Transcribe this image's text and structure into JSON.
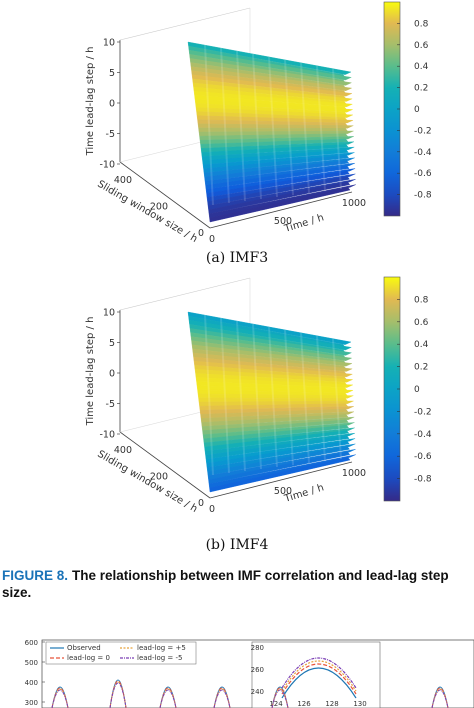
{
  "figure": {
    "number": "FIGURE 8.",
    "caption": "The relationship between IMF correlation and lead-lag step size."
  },
  "chart_data": [
    {
      "type": "surface3d",
      "sublabel": "(a) IMF3",
      "xlabel": "Time / h",
      "ylabel": "Sliding window size / h",
      "zlabel": "Time lead-lag step / h",
      "x_ticks": [
        "0",
        "500",
        "1000"
      ],
      "y_ticks": [
        "0",
        "200",
        "400"
      ],
      "z_ticks": [
        "-10",
        "-5",
        "0",
        "5",
        "10"
      ],
      "colorbar_ticks": [
        "0.8",
        "0.6",
        "0.4",
        "0.2",
        "0",
        "-0.2",
        "-0.4",
        "-0.6",
        "-0.8"
      ],
      "colorbar_range": [
        -1,
        1
      ],
      "xlim": [
        0,
        1000
      ],
      "ylim": [
        0,
        500
      ],
      "zlim": [
        -10,
        10
      ]
    },
    {
      "type": "surface3d",
      "sublabel": "(b) IMF4",
      "xlabel": "Time / h",
      "ylabel": "Sliding window size / h",
      "zlabel": "Time lead-lag step / h",
      "x_ticks": [
        "0",
        "500",
        "1000"
      ],
      "y_ticks": [
        "0",
        "200",
        "400"
      ],
      "z_ticks": [
        "-10",
        "-5",
        "0",
        "5",
        "10"
      ],
      "colorbar_ticks": [
        "0.8",
        "0.6",
        "0.4",
        "0.2",
        "0",
        "-0.2",
        "-0.4",
        "-0.6",
        "-0.8"
      ],
      "colorbar_range": [
        -1,
        1
      ],
      "xlim": [
        0,
        1000
      ],
      "ylim": [
        0,
        500
      ],
      "zlim": [
        -10,
        10
      ]
    },
    {
      "type": "line",
      "legend": [
        "Observed",
        "lead-log = +5",
        "lead-log = 0",
        "lead-log = -5"
      ],
      "y_ticks": [
        "600",
        "500",
        "400",
        "300"
      ],
      "inset_y_ticks": [
        "280",
        "260",
        "240"
      ],
      "inset_x_ticks": [
        "124",
        "126",
        "128",
        "130"
      ]
    }
  ],
  "colors": {
    "caption_accent": "#1a73b8",
    "parula_low": "#352a87",
    "parula_high": "#f9fb0e"
  }
}
